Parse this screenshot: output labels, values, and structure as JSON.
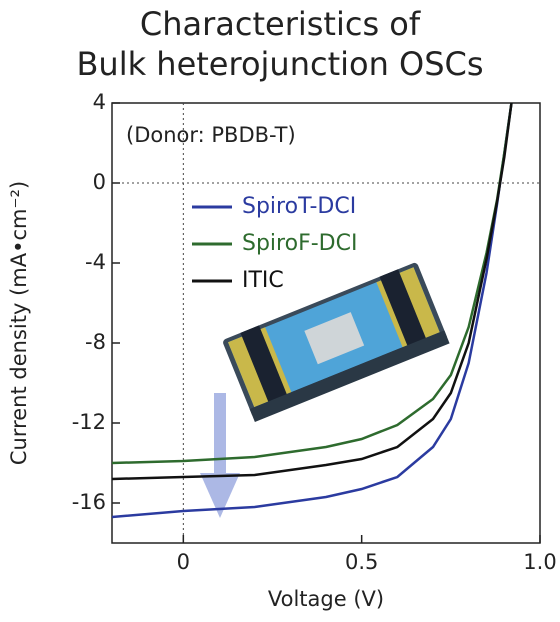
{
  "chart_data": {
    "type": "line",
    "title": [
      "Characteristics of",
      "Bulk heterojunction OSCs"
    ],
    "annotation": "(Donor: PBDB-T)",
    "xlabel": "Voltage (V)",
    "ylabel": "Current density (mA•cm⁻²)",
    "x": [
      -0.2,
      0,
      0.2,
      0.4,
      0.5,
      0.6,
      0.7,
      0.75,
      0.8,
      0.85,
      0.88,
      0.9,
      0.92
    ],
    "series": [
      {
        "name": "SpiroT-DCI",
        "color": "#2b3ba0",
        "values": [
          -16.7,
          -16.4,
          -16.2,
          -15.7,
          -15.3,
          -14.7,
          -13.2,
          -11.8,
          -9,
          -4.5,
          -1,
          1.5,
          4
        ]
      },
      {
        "name": "SpiroF-DCI",
        "color": "#2e6b2e",
        "values": [
          -14,
          -13.9,
          -13.7,
          -13.2,
          -12.8,
          -12.1,
          -10.8,
          -9.6,
          -7.2,
          -3.5,
          -0.8,
          1.5,
          4
        ]
      },
      {
        "name": "ITIC",
        "color": "#111111",
        "values": [
          -14.8,
          -14.7,
          -14.6,
          -14.1,
          -13.8,
          -13.2,
          -11.8,
          -10.5,
          -8,
          -3.8,
          -0.9,
          1.3,
          4
        ]
      }
    ],
    "xlim": [
      -0.2,
      1
    ],
    "ylim": [
      -18,
      4
    ],
    "xticks": [
      0,
      0.5,
      {
        "value": 1,
        "label": "1.0"
      }
    ],
    "yticks": [
      -16,
      -12,
      -8,
      -4,
      0,
      4
    ],
    "legend": "upper-left",
    "zero_lines": true
  }
}
